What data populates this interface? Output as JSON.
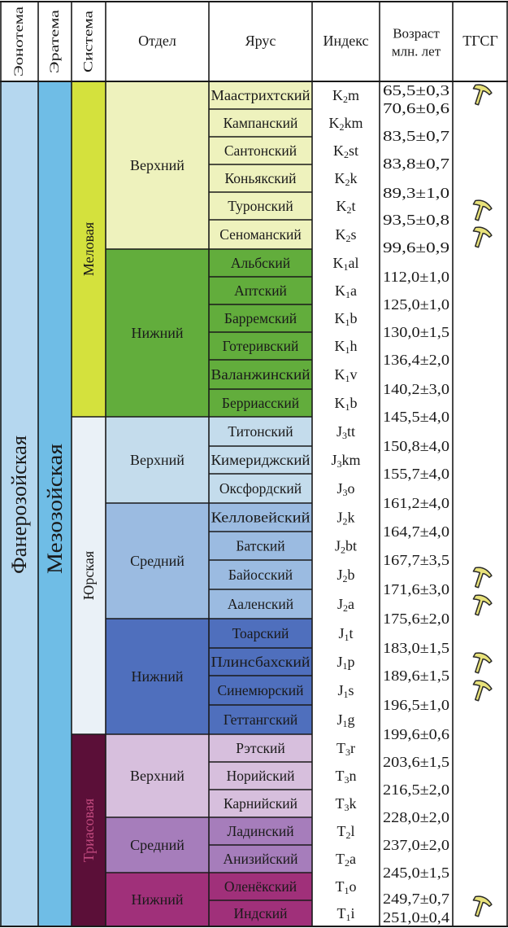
{
  "headers": {
    "eonothem": "Эонотема",
    "erathem": "Эратема",
    "system": "Система",
    "series": "Отдел",
    "stage": "Ярус",
    "index": "Индекс",
    "age_line1": "Возраст",
    "age_line2": "млн. лет",
    "gssp": "ТГСГ"
  },
  "eonothem": {
    "name": "Фанерозойская",
    "color": "#b5d7ef"
  },
  "erathem": {
    "name": "Мезозойская",
    "color": "#6fbde6"
  },
  "systems": [
    {
      "name": "Меловая",
      "color": "#d4e13d"
    },
    {
      "name": "Юрская",
      "color": "#eaf1f7"
    },
    {
      "name": "Триасовая",
      "color": "#5b0f38"
    }
  ],
  "series": [
    {
      "name": "Верхний",
      "color": "#eef2bd"
    },
    {
      "name": "Нижний",
      "color": "#62ad3c"
    },
    {
      "name": "Верхний",
      "color": "#c4dcec"
    },
    {
      "name": "Средний",
      "color": "#9bbbe1"
    },
    {
      "name": "Нижний",
      "color": "#4f6fbd"
    },
    {
      "name": "Верхний",
      "color": "#d7bfdd"
    },
    {
      "name": "Средний",
      "color": "#a67dbb"
    },
    {
      "name": "Нижний",
      "color": "#a0307a"
    }
  ],
  "stages": [
    {
      "name": "Маастрихтский",
      "idx": [
        "K",
        "2",
        "m"
      ],
      "age": "65,5±0,3",
      "gssp": true
    },
    {
      "name": "Кампанский",
      "idx": [
        "K",
        "2",
        "km"
      ],
      "age": "70,6±0,6",
      "gssp": false
    },
    {
      "name": "Сантонский",
      "idx": [
        "K",
        "2",
        "st"
      ],
      "age": "83,5±0,7",
      "gssp": false
    },
    {
      "name": "Коньякский",
      "idx": [
        "K",
        "2",
        "k"
      ],
      "age": "83,8±0,7",
      "gssp": false
    },
    {
      "name": "Туронский",
      "idx": [
        "K",
        "2",
        "t"
      ],
      "age": "89,3±1,0",
      "gssp": true
    },
    {
      "name": "Сеноманский",
      "idx": [
        "K",
        "2",
        "s"
      ],
      "age": "93,5±0,8",
      "gssp": true
    },
    {
      "name": "Альбский",
      "idx": [
        "K",
        "1",
        "al"
      ],
      "age": "99,6±0,9",
      "gssp": false
    },
    {
      "name": "Аптский",
      "idx": [
        "K",
        "1",
        "a"
      ],
      "age": "112,0±1,0",
      "gssp": false
    },
    {
      "name": "Барремский",
      "idx": [
        "K",
        "1",
        "b"
      ],
      "age": "125,0±1,0",
      "gssp": false
    },
    {
      "name": "Готеривский",
      "idx": [
        "K",
        "1",
        "h"
      ],
      "age": "130,0±1,5",
      "gssp": false
    },
    {
      "name": "Валанжинский",
      "idx": [
        "K",
        "1",
        "v"
      ],
      "age": "136,4±2,0",
      "gssp": false
    },
    {
      "name": "Берриасский",
      "idx": [
        "K",
        "1",
        "b"
      ],
      "age": "140,2±3,0",
      "gssp": false
    },
    {
      "name": "Титонский",
      "idx": [
        "J",
        "3",
        "tt"
      ],
      "age": "145,5±4,0",
      "gssp": false
    },
    {
      "name": "Кимериджский",
      "idx": [
        "J",
        "3",
        "km"
      ],
      "age": "150,8±4,0",
      "gssp": false
    },
    {
      "name": "Оксфордский",
      "idx": [
        "J",
        "3",
        "o"
      ],
      "age": "155,7±4,0",
      "gssp": false
    },
    {
      "name": "Келловейский",
      "idx": [
        "J",
        "2",
        "k"
      ],
      "age": "161,2±4,0",
      "gssp": false
    },
    {
      "name": "Батский",
      "idx": [
        "J",
        "2",
        "bt"
      ],
      "age": "164,7±4,0",
      "gssp": false
    },
    {
      "name": "Байосский",
      "idx": [
        "J",
        "2",
        "b"
      ],
      "age": "167,7±3,5",
      "gssp": true
    },
    {
      "name": "Ааленский",
      "idx": [
        "J",
        "2",
        "a"
      ],
      "age": "171,6±3,0",
      "gssp": true
    },
    {
      "name": "Тоарский",
      "idx": [
        "J",
        "1",
        "t"
      ],
      "age": "175,6±2,0",
      "gssp": false
    },
    {
      "name": "Плинсбахский",
      "idx": [
        "J",
        "1",
        "p"
      ],
      "age": "183,0±1,5",
      "gssp": true
    },
    {
      "name": "Синемюрский",
      "idx": [
        "J",
        "1",
        "s"
      ],
      "age": "189,6±1,5",
      "gssp": true
    },
    {
      "name": "Геттангский",
      "idx": [
        "J",
        "1",
        "g"
      ],
      "age": "196,5±1,0",
      "gssp": false
    },
    {
      "name": "Рэтский",
      "idx": [
        "T",
        "3",
        "r"
      ],
      "age": "199,6±0,6",
      "gssp": false
    },
    {
      "name": "Норийский",
      "idx": [
        "T",
        "3",
        "n"
      ],
      "age": "203,6±1,5",
      "gssp": false
    },
    {
      "name": "Карнийский",
      "idx": [
        "T",
        "3",
        "k"
      ],
      "age": "216,5±2,0",
      "gssp": false
    },
    {
      "name": "Ладинский",
      "idx": [
        "T",
        "2",
        "l"
      ],
      "age": "228,0±2,0",
      "gssp": false
    },
    {
      "name": "Анизийский",
      "idx": [
        "T",
        "2",
        "a"
      ],
      "age": "237,0±2,0",
      "gssp": false
    },
    {
      "name": "Оленёкский",
      "idx": [
        "T",
        "1",
        "o"
      ],
      "age": "245,0±1,5",
      "gssp": false
    },
    {
      "name": "Индский",
      "idx": [
        "T",
        "1",
        "i"
      ],
      "age": "249,7±0,7",
      "gssp": false
    }
  ],
  "final_age": "251,0±0,4",
  "gssp_icon": "golden-spike-icon",
  "gssp_color": "#e8e27a"
}
